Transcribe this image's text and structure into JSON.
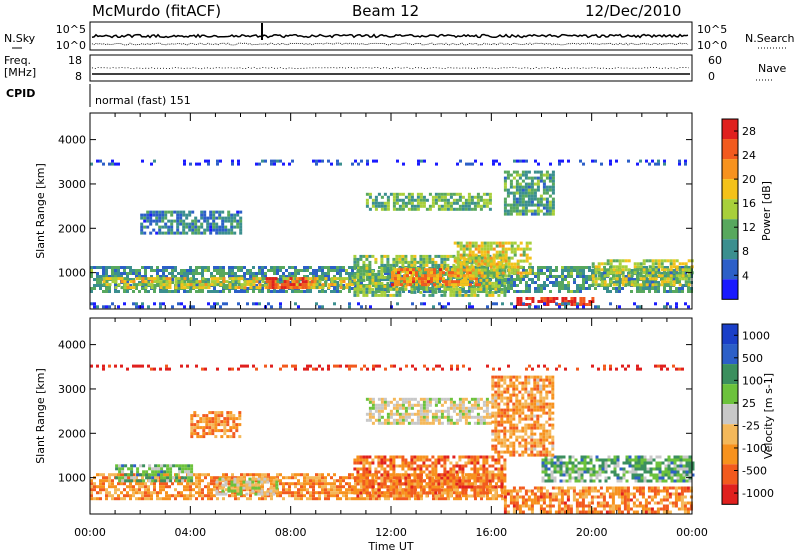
{
  "header": {
    "station": "McMurdo (fitACF)",
    "beam": "Beam 12",
    "date": "12/Dec/2010"
  },
  "status_panels": {
    "nsky_label": "N.Sky",
    "nsearch_label": "N.Search",
    "left_ticks_top": [
      "10^5",
      "10^0"
    ],
    "right_ticks_top": [
      "10^5",
      "10^0"
    ],
    "freq_label_1": "Freq.",
    "freq_label_2": "[MHz]",
    "freq_ticks": [
      "18",
      "8"
    ],
    "nave_label": "Nave",
    "nave_ticks": [
      "60",
      "0"
    ],
    "cpid_label": "CPID",
    "cpid_value": "normal (fast) 151"
  },
  "x_axis": {
    "label": "Time UT",
    "ticks": [
      "00:00",
      "04:00",
      "08:00",
      "12:00",
      "16:00",
      "20:00",
      "00:00"
    ]
  },
  "colors": {
    "power": [
      "#1a1aff",
      "#2c5fc8",
      "#3b8f8f",
      "#58a85e",
      "#a8cf3a",
      "#f4c21a",
      "#f7921e",
      "#f25a1e",
      "#e0201e"
    ],
    "velocity": [
      "#e0201e",
      "#f25a1e",
      "#f7921e",
      "#f4b85a",
      "#c8c8c8",
      "#6cc23c",
      "#3b8f5e",
      "#2c5fc8",
      "#1a3fc8"
    ]
  },
  "chart_data": [
    {
      "type": "heatmap",
      "title": "",
      "xlabel": "Time UT",
      "ylabel": "Slant Range [km]",
      "xlim": [
        0,
        24
      ],
      "ylim": [
        180,
        4600
      ],
      "y_ticks": [
        "1000",
        "2000",
        "3000",
        "4000"
      ],
      "colorbar": {
        "label": "Power [dB]",
        "ticks": [
          "4",
          "8",
          "12",
          "16",
          "20",
          "24",
          "28"
        ],
        "range": [
          0,
          30
        ]
      },
      "regions": [
        {
          "t0": 0.0,
          "t1": 24.0,
          "r0": 550,
          "r1": 1150,
          "level": 0.3
        },
        {
          "t0": 0.5,
          "t1": 10.5,
          "r0": 650,
          "r1": 900,
          "level": 0.55
        },
        {
          "t0": 7.0,
          "t1": 9.0,
          "r0": 650,
          "r1": 900,
          "level": 0.85
        },
        {
          "t0": 10.5,
          "t1": 16.5,
          "r0": 500,
          "r1": 1400,
          "level": 0.45
        },
        {
          "t0": 12.0,
          "t1": 15.5,
          "r0": 700,
          "r1": 1100,
          "level": 0.75
        },
        {
          "t0": 14.5,
          "t1": 17.5,
          "r0": 900,
          "r1": 1700,
          "level": 0.55
        },
        {
          "t0": 17.0,
          "t1": 20.0,
          "r0": 250,
          "r1": 450,
          "level": 0.95
        },
        {
          "t0": 11.0,
          "t1": 16.0,
          "r0": 2400,
          "r1": 2800,
          "level": 0.4
        },
        {
          "t0": 16.5,
          "t1": 18.5,
          "r0": 2300,
          "r1": 3300,
          "level": 0.35
        },
        {
          "t0": 2.0,
          "t1": 6.0,
          "r0": 1900,
          "r1": 2400,
          "level": 0.25
        },
        {
          "t0": 20.0,
          "t1": 24.0,
          "r0": 700,
          "r1": 1300,
          "level": 0.5
        },
        {
          "t0": 0.0,
          "t1": 24.0,
          "r0": 200,
          "r1": 330,
          "level": 0.15
        },
        {
          "t0": 0.0,
          "t1": 24.0,
          "r0": 3450,
          "r1": 3550,
          "level": 0.1
        }
      ]
    },
    {
      "type": "heatmap",
      "title": "",
      "xlabel": "Time UT",
      "ylabel": "Slant Range [km]",
      "xlim": [
        0,
        24
      ],
      "ylim": [
        180,
        4600
      ],
      "y_ticks": [
        "1000",
        "2000",
        "3000",
        "4000"
      ],
      "colorbar": {
        "label": "Velocity [m s-1]",
        "ticks": [
          "1000",
          "500",
          "100",
          "25",
          "-25",
          "-100",
          "-500",
          "-1000"
        ],
        "range": [
          -1000,
          1000
        ]
      },
      "regions": [
        {
          "t0": 0.0,
          "t1": 16.5,
          "r0": 500,
          "r1": 1100,
          "level": 0.28
        },
        {
          "t0": 1.0,
          "t1": 4.0,
          "r0": 900,
          "r1": 1300,
          "level": 0.65
        },
        {
          "t0": 5.0,
          "t1": 7.5,
          "r0": 650,
          "r1": 1000,
          "level": 0.5
        },
        {
          "t0": 10.5,
          "t1": 16.5,
          "r0": 600,
          "r1": 1500,
          "level": 0.22
        },
        {
          "t0": 16.5,
          "t1": 24.0,
          "r0": 250,
          "r1": 800,
          "level": 0.25
        },
        {
          "t0": 18.0,
          "t1": 24.0,
          "r0": 900,
          "r1": 1500,
          "level": 0.65
        },
        {
          "t0": 11.0,
          "t1": 16.0,
          "r0": 2200,
          "r1": 2800,
          "level": 0.48
        },
        {
          "t0": 16.0,
          "t1": 18.5,
          "r0": 1500,
          "r1": 3300,
          "level": 0.3
        },
        {
          "t0": 4.0,
          "t1": 6.0,
          "r0": 1900,
          "r1": 2500,
          "level": 0.28
        },
        {
          "t0": 0.0,
          "t1": 24.0,
          "r0": 3450,
          "r1": 3550,
          "level": 0.05
        }
      ]
    }
  ]
}
